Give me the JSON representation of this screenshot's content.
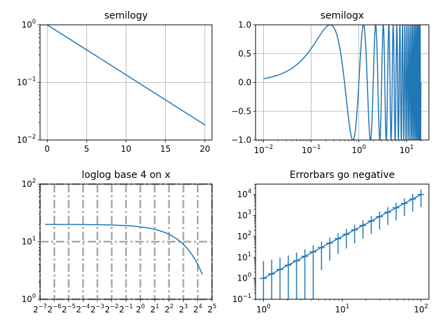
{
  "chart_data": [
    {
      "type": "line",
      "title": "semilogy",
      "xscale": "linear",
      "yscale": "log",
      "grid": true,
      "xlim": [
        -0.9,
        20.9
      ],
      "ylim": [
        0.01,
        1
      ],
      "x_ticks": [
        0,
        5,
        10,
        15,
        20
      ],
      "y_ticks": [
        0.01,
        0.1,
        1
      ],
      "y_tick_labels": [
        {
          "base": "10",
          "exp": "−2"
        },
        {
          "base": "10",
          "exp": "−1"
        },
        {
          "base": "10",
          "exp": "0"
        }
      ],
      "color": "#1f77b4",
      "series": [
        {
          "x": [
            0,
            20
          ],
          "y": [
            1,
            0.0183
          ]
        }
      ]
    },
    {
      "type": "line",
      "title": "semilogx",
      "xscale": "log",
      "yscale": "linear",
      "grid": true,
      "xlim": [
        0.0068,
        29.4
      ],
      "ylim": [
        -1,
        1
      ],
      "x_ticks": [
        0.01,
        0.1,
        1,
        10
      ],
      "x_tick_labels": [
        {
          "base": "10",
          "exp": "−2"
        },
        {
          "base": "10",
          "exp": "−1"
        },
        {
          "base": "10",
          "exp": "0"
        },
        {
          "base": "10",
          "exp": "1"
        }
      ],
      "y_ticks": [
        -1.0,
        -0.5,
        0.0,
        0.5,
        1.0
      ],
      "y_tick_labels": [
        "−1.0",
        "−0.5",
        "0.0",
        "0.5",
        "1.0"
      ],
      "color": "#1f77b4",
      "function": "sin(2*pi*x)",
      "x_range": [
        0.01,
        20
      ]
    },
    {
      "type": "line",
      "title": "loglog base 4 on x",
      "xscale": "log base 2",
      "yscale": "log",
      "grid": true,
      "grid_style": "dash-dot, gray, thick",
      "xlim": [
        0.0078125,
        32
      ],
      "ylim": [
        1,
        100
      ],
      "x_ticks_exp": [
        -7,
        -6,
        -5,
        -4,
        -3,
        -2,
        -1,
        0,
        1,
        2,
        3,
        4,
        5
      ],
      "x_tick_labels": [
        {
          "base": "2",
          "exp": "−7"
        },
        {
          "base": "2",
          "exp": "−6"
        },
        {
          "base": "2",
          "exp": "−5"
        },
        {
          "base": "2",
          "exp": "−4"
        },
        {
          "base": "2",
          "exp": "−3"
        },
        {
          "base": "2",
          "exp": "−2"
        },
        {
          "base": "2",
          "exp": "−1"
        },
        {
          "base": "2",
          "exp": "0"
        },
        {
          "base": "2",
          "exp": "1"
        },
        {
          "base": "2",
          "exp": "2"
        },
        {
          "base": "2",
          "exp": "3"
        },
        {
          "base": "2",
          "exp": "4"
        },
        {
          "base": "2",
          "exp": "5"
        }
      ],
      "y_ticks": [
        1,
        10,
        100
      ],
      "y_tick_labels": [
        {
          "base": "10",
          "exp": "0"
        },
        {
          "base": "10",
          "exp": "1"
        },
        {
          "base": "10",
          "exp": "2"
        }
      ],
      "color": "#1f77b4",
      "function": "20*exp(-x/10)",
      "x_range": [
        0.01,
        20
      ]
    },
    {
      "type": "line",
      "title": "Errorbars go negative",
      "xscale": "log",
      "yscale": "log",
      "grid": false,
      "xlim": [
        0.794,
        125.9
      ],
      "ylim": [
        0.1,
        31623
      ],
      "x_ticks": [
        1,
        10,
        100
      ],
      "x_tick_labels": [
        {
          "base": "10",
          "exp": "0"
        },
        {
          "base": "10",
          "exp": "1"
        },
        {
          "base": "10",
          "exp": "2"
        }
      ],
      "y_ticks": [
        0.1,
        1,
        10,
        100,
        1000,
        10000
      ],
      "y_tick_labels": [
        {
          "base": "10",
          "exp": "−1"
        },
        {
          "base": "10",
          "exp": "0"
        },
        {
          "base": "10",
          "exp": "1"
        },
        {
          "base": "10",
          "exp": "2"
        },
        {
          "base": "10",
          "exp": "3"
        },
        {
          "base": "10",
          "exp": "4"
        }
      ],
      "color": "#1f77b4",
      "function": "y = x^2, x = 10^linspace(0,2,20)",
      "errorbar": "x error 10%, y error 5 + 0.75*y"
    }
  ]
}
